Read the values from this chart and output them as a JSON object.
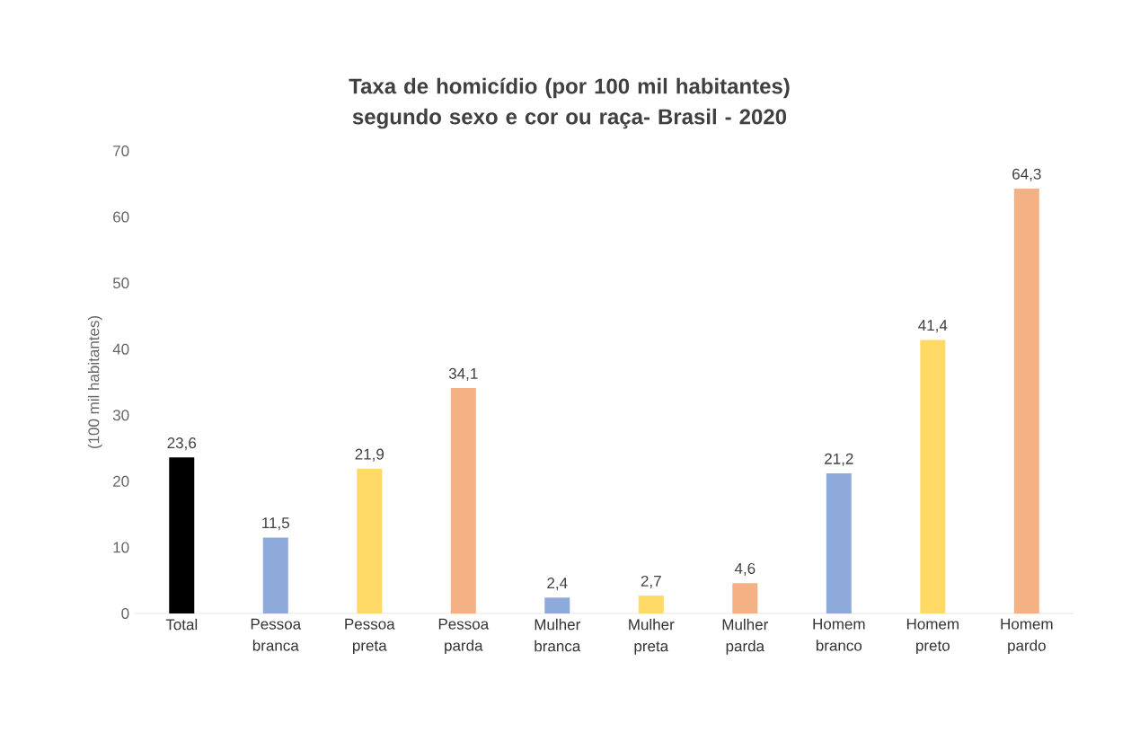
{
  "chart_data": {
    "type": "bar",
    "title": "Taxa de homicídio (por 100 mil habitantes)  segundo sexo e cor ou raça- Brasil - 2020",
    "ylabel": "(100 mil habitantes)",
    "categories": [
      "Total",
      "Pessoa branca",
      "Pessoa preta",
      "Pessoa parda",
      "Mulher branca",
      "Mulher preta",
      "Mulher parda",
      "Homem branco",
      "Homem preto",
      "Homem pardo"
    ],
    "values": [
      23.6,
      11.5,
      21.9,
      34.1,
      2.4,
      2.7,
      4.6,
      21.2,
      41.4,
      64.3
    ],
    "value_labels": [
      "23,6",
      "11,5",
      "21,9",
      "34,1",
      "2,4",
      "2,7",
      "4,6",
      "21,2",
      "41,4",
      "64,3"
    ],
    "colors": [
      "#000000",
      "#8eaadb",
      "#ffd966",
      "#f4b183",
      "#8eaadb",
      "#ffd966",
      "#f4b183",
      "#8eaadb",
      "#ffd966",
      "#f4b183"
    ],
    "ylim": [
      0,
      70
    ],
    "yticks": [
      0,
      10,
      20,
      30,
      40,
      50,
      60,
      70
    ]
  }
}
